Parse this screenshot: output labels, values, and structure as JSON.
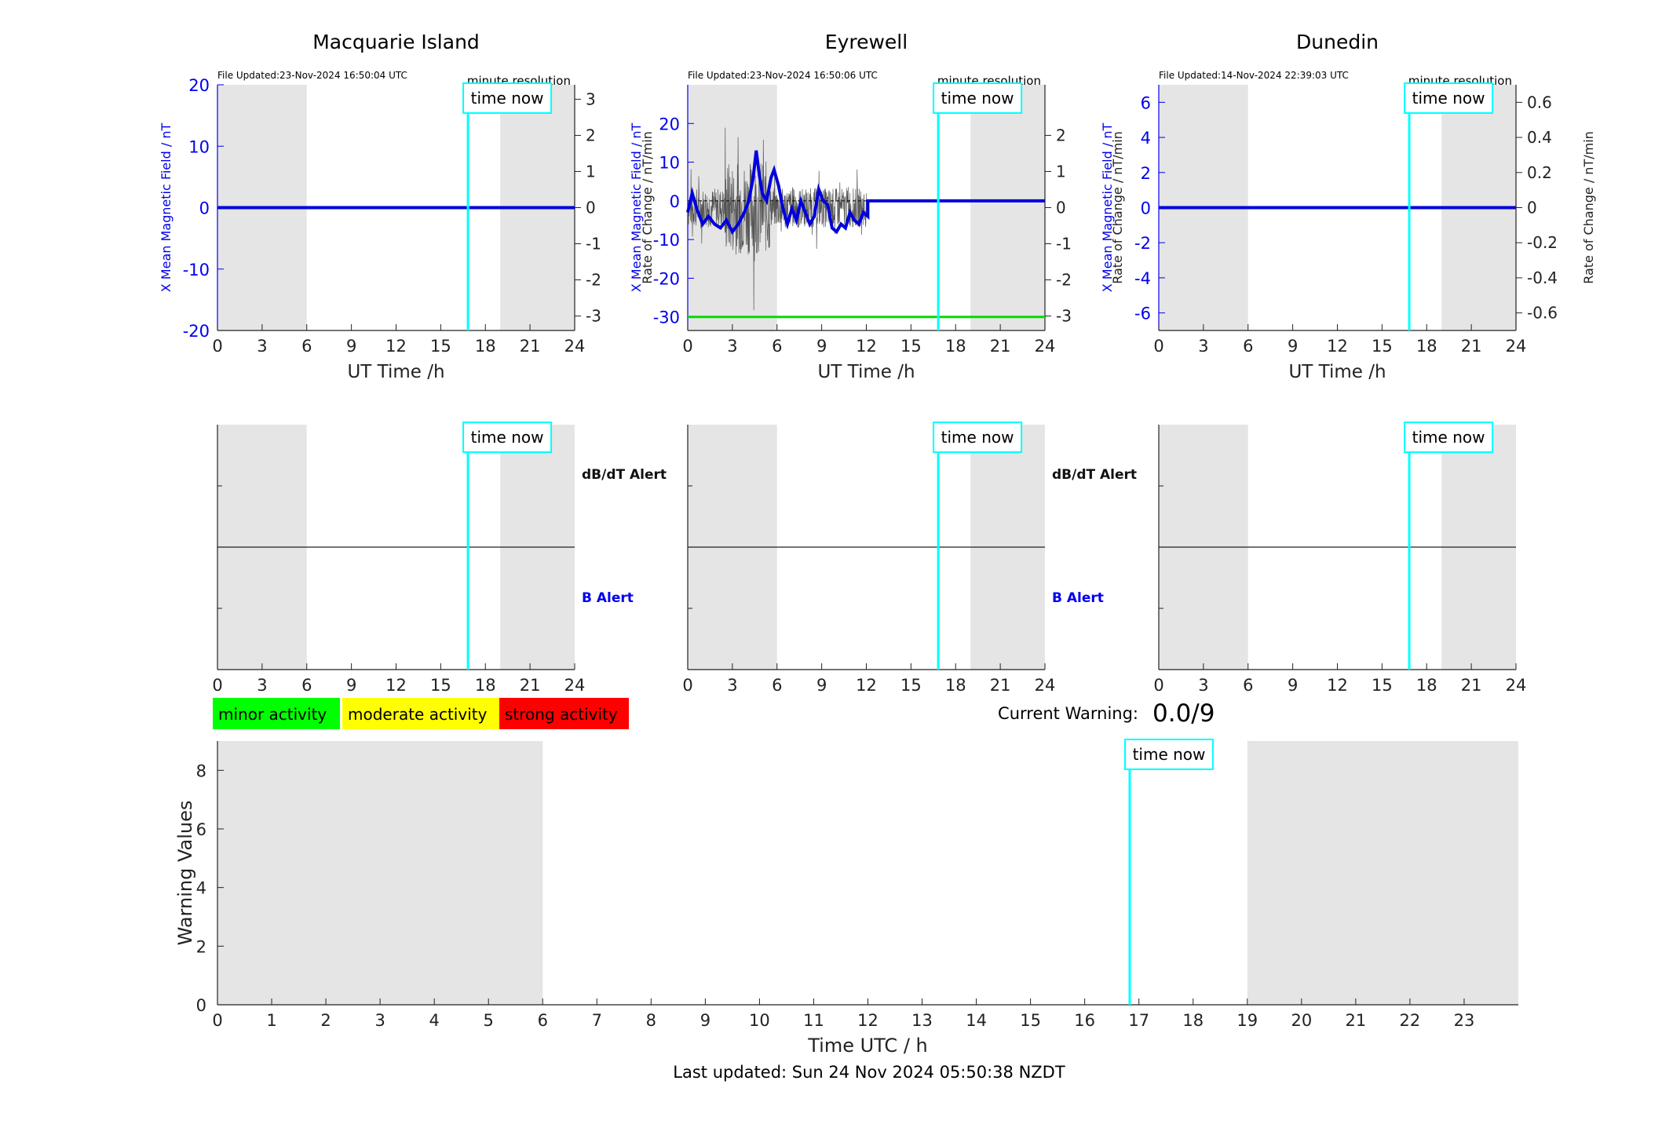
{
  "chart_data": [
    {
      "type": "line",
      "title": "Macquarie Island",
      "file_updated": "File Updated:23-Nov-2024 16:50:04 UTC",
      "resolution_note": "minute resolution",
      "xlabel": "UT Time /h",
      "ylabel_left": "X Mean Magnetic Field / nT",
      "ylabel_right": "Rate of Change / nT/min",
      "xlim": [
        0,
        24
      ],
      "ylim_left": [
        -20,
        20
      ],
      "ylim_right": [
        -3.4,
        3.4
      ],
      "x_ticks": [
        "0",
        "3",
        "6",
        "9",
        "12",
        "15",
        "18",
        "21",
        "24"
      ],
      "y_ticks_left": [
        "-20",
        "-10",
        "0",
        "10",
        "20"
      ],
      "y_ticks_right": [
        "-3",
        "-2",
        "-1",
        "0",
        "1",
        "2",
        "3"
      ],
      "shaded_night": [
        [
          0,
          6
        ],
        [
          19,
          24
        ]
      ],
      "time_now": 16.83,
      "time_now_label": "time now",
      "series": [
        {
          "values_x": [
            0,
            24
          ],
          "values_y": [
            0,
            0
          ],
          "color": "#0000dd"
        }
      ]
    },
    {
      "type": "line",
      "title": "Eyrewell",
      "file_updated": "File Updated:23-Nov-2024 16:50:06 UTC",
      "resolution_note": "minute resolution",
      "xlabel": "UT Time /h",
      "ylabel_left": "X Mean Magnetic Field / nT",
      "ylabel_right": "Rate of Change / nT/min",
      "xlim": [
        0,
        24
      ],
      "ylim_left": [
        -33.5,
        30
      ],
      "ylim_right": [
        -3.4,
        3.4
      ],
      "x_ticks": [
        "0",
        "3",
        "6",
        "9",
        "12",
        "15",
        "18",
        "21",
        "24"
      ],
      "y_ticks_left": [
        "-30",
        "-20",
        "-10",
        "0",
        "10",
        "20"
      ],
      "y_ticks_right": [
        "-3",
        "-2",
        "-1",
        "0",
        "1",
        "2"
      ],
      "shaded_night": [
        [
          0,
          6
        ],
        [
          19,
          24
        ]
      ],
      "time_now": 16.83,
      "time_now_label": "time now",
      "threshold_line_y": -30,
      "threshold_color": "#00dd00",
      "mean_field_series": {
        "color": "#0000dd",
        "x": [
          0,
          0.3,
          0.6,
          1.0,
          1.4,
          1.8,
          2.2,
          2.6,
          3.0,
          3.4,
          3.8,
          4.1,
          4.4,
          4.6,
          4.8,
          5.0,
          5.3,
          5.6,
          5.8,
          6.1,
          6.4,
          6.7,
          7.0,
          7.3,
          7.6,
          7.9,
          8.2,
          8.5,
          8.8,
          9.1,
          9.4,
          9.7,
          10.0,
          10.3,
          10.6,
          10.9,
          11.2,
          11.5,
          11.8,
          12.1,
          12.1,
          24
        ],
        "y": [
          -3,
          2,
          -2,
          -6,
          -4,
          -6,
          -7,
          -5,
          -8,
          -6,
          -3,
          0,
          6,
          13,
          7,
          2,
          0,
          6,
          8,
          4,
          -2,
          -6,
          -2,
          -5,
          0,
          -3,
          -6,
          -4,
          3,
          0,
          -1,
          -7,
          -8,
          -6,
          -7,
          -3,
          -5,
          -6,
          -3,
          -4,
          0,
          0
        ]
      },
      "rate_of_change_range": [
        0,
        12
      ],
      "rate_of_change_color": "#555555"
    },
    {
      "type": "line",
      "title": "Dunedin",
      "file_updated": "File Updated:14-Nov-2024 22:39:03 UTC",
      "resolution_note": "minute resolution",
      "xlabel": "UT Time /h",
      "ylabel_left": "X Mean Magnetic Field / nT",
      "ylabel_right": "Rate of Change / nT/min",
      "xlim": [
        0,
        24
      ],
      "ylim_left": [
        -7,
        7
      ],
      "ylim_right": [
        -0.7,
        0.7
      ],
      "x_ticks": [
        "0",
        "3",
        "6",
        "9",
        "12",
        "15",
        "18",
        "21",
        "24"
      ],
      "y_ticks_left": [
        "-6",
        "-4",
        "-2",
        "0",
        "2",
        "4",
        "6"
      ],
      "y_ticks_right": [
        "-0.6",
        "-0.4",
        "-0.2",
        "0",
        "0.2",
        "0.4",
        "0.6"
      ],
      "shaded_night": [
        [
          0,
          6
        ],
        [
          19,
          24
        ]
      ],
      "time_now": 16.83,
      "time_now_label": "time now",
      "series": [
        {
          "values_x": [
            0,
            24
          ],
          "values_y": [
            0,
            0
          ],
          "color": "#0000dd"
        }
      ]
    },
    {
      "type": "line",
      "panel": "alerts",
      "alert_upper_label": "dB/dT Alert",
      "alert_lower_label": "B Alert",
      "xlim": [
        0,
        24
      ],
      "x_ticks": [
        "0",
        "3",
        "6",
        "9",
        "12",
        "15",
        "18",
        "21",
        "24"
      ],
      "shaded_night": [
        [
          0,
          6
        ],
        [
          19,
          24
        ]
      ],
      "time_now": 16.83,
      "time_now_label": "time now",
      "panels": [
        "Macquarie Island",
        "Eyrewell",
        "Dunedin"
      ]
    },
    {
      "type": "bar",
      "title": "",
      "xlabel": "Time UTC / h",
      "ylabel": "Warning Values",
      "xlim": [
        0,
        24
      ],
      "ylim": [
        0,
        9
      ],
      "x_ticks": [
        "0",
        "1",
        "2",
        "3",
        "4",
        "5",
        "6",
        "7",
        "8",
        "9",
        "10",
        "11",
        "12",
        "13",
        "14",
        "15",
        "16",
        "17",
        "18",
        "19",
        "20",
        "21",
        "22",
        "23"
      ],
      "y_ticks": [
        "0",
        "2",
        "4",
        "6",
        "8"
      ],
      "shaded_night": [
        [
          0,
          6
        ],
        [
          19,
          24
        ]
      ],
      "time_now": 16.83,
      "time_now_label": "time now",
      "values": [
        0,
        0,
        0,
        0,
        0,
        0,
        0,
        0,
        0,
        0,
        0,
        0,
        0,
        0,
        0,
        0,
        0,
        0,
        0,
        0,
        0,
        0,
        0,
        0
      ]
    }
  ],
  "legend": {
    "minor": {
      "label": "minor activity",
      "color": "#00ff00"
    },
    "moderate": {
      "label": "moderate activity",
      "color": "#ffff00"
    },
    "strong": {
      "label": "strong activity",
      "color": "#ff0000"
    }
  },
  "current_warning": {
    "label": "Current Warning:",
    "value": "0.0/9"
  },
  "last_updated": "Last updated: Sun 24 Nov 2024 05:50:38 NZDT",
  "colors": {
    "night_shade": "#e5e5e5",
    "time_now": "#00ffff",
    "axis_blue": "#0000ee",
    "axis_black": "#222222"
  }
}
